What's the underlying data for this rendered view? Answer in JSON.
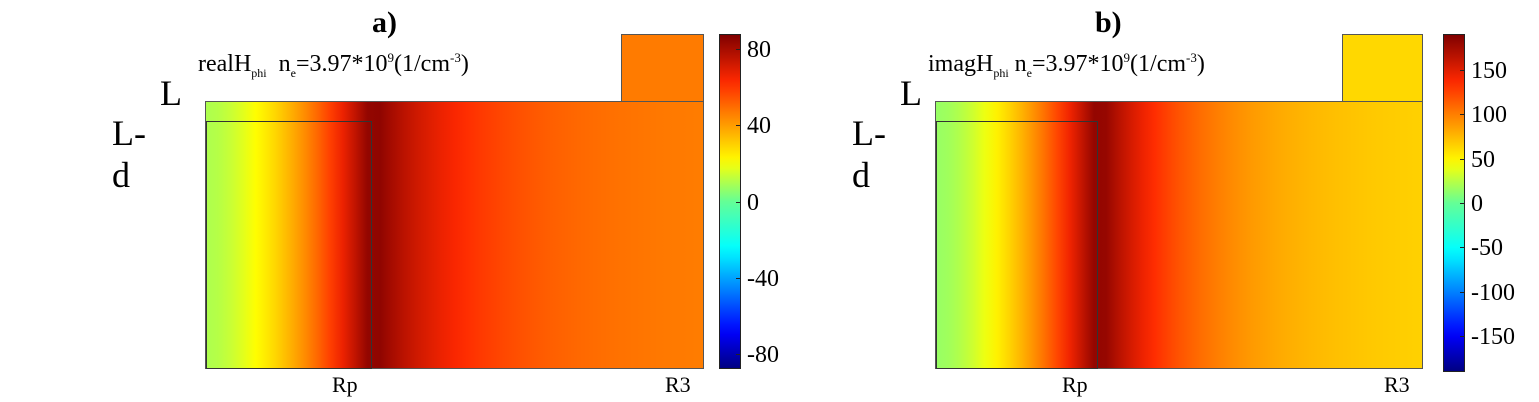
{
  "chart_data": [
    {
      "type": "heatmap",
      "title": "a)",
      "annotation": {
        "quantity": "realH",
        "quantity_sub": "phi",
        "density_prefix": "n",
        "density_sub": "e",
        "density_value": "=3.97*10",
        "density_exp": "9",
        "unit_prefix": "(1/cm",
        "unit_exp": "-3",
        "unit_suffix": ")"
      },
      "y_labels": [
        "L",
        "L-d"
      ],
      "x_labels": [
        "Rp",
        "R3"
      ],
      "colorbar": {
        "ticks": [
          "80",
          "40",
          "0",
          "-40",
          "-80"
        ],
        "range": [
          -88,
          88
        ],
        "colormap": "jet"
      },
      "field_profile": {
        "peak_at": "Rp",
        "left_edge_value": 10,
        "peak_value": 88,
        "right_edge_value": 45
      }
    },
    {
      "type": "heatmap",
      "title": "b)",
      "annotation": {
        "quantity": "imagH",
        "quantity_sub": "phi",
        "density_prefix": "n",
        "density_sub": "e",
        "density_value": "=3.97*10",
        "density_exp": "9",
        "unit_prefix": "(1/cm",
        "unit_exp": "-3",
        "unit_suffix": ")"
      },
      "y_labels": [
        "L",
        "L-d"
      ],
      "x_labels": [
        "Rp",
        "R3"
      ],
      "colorbar": {
        "ticks": [
          "150",
          "100",
          "50",
          "0",
          "-50",
          "-100",
          "-150"
        ],
        "range": [
          -190,
          190
        ],
        "colormap": "jet"
      },
      "field_profile": {
        "peak_at": "Rp",
        "left_edge_value": 15,
        "peak_value": 190,
        "right_edge_value": 60
      }
    }
  ]
}
